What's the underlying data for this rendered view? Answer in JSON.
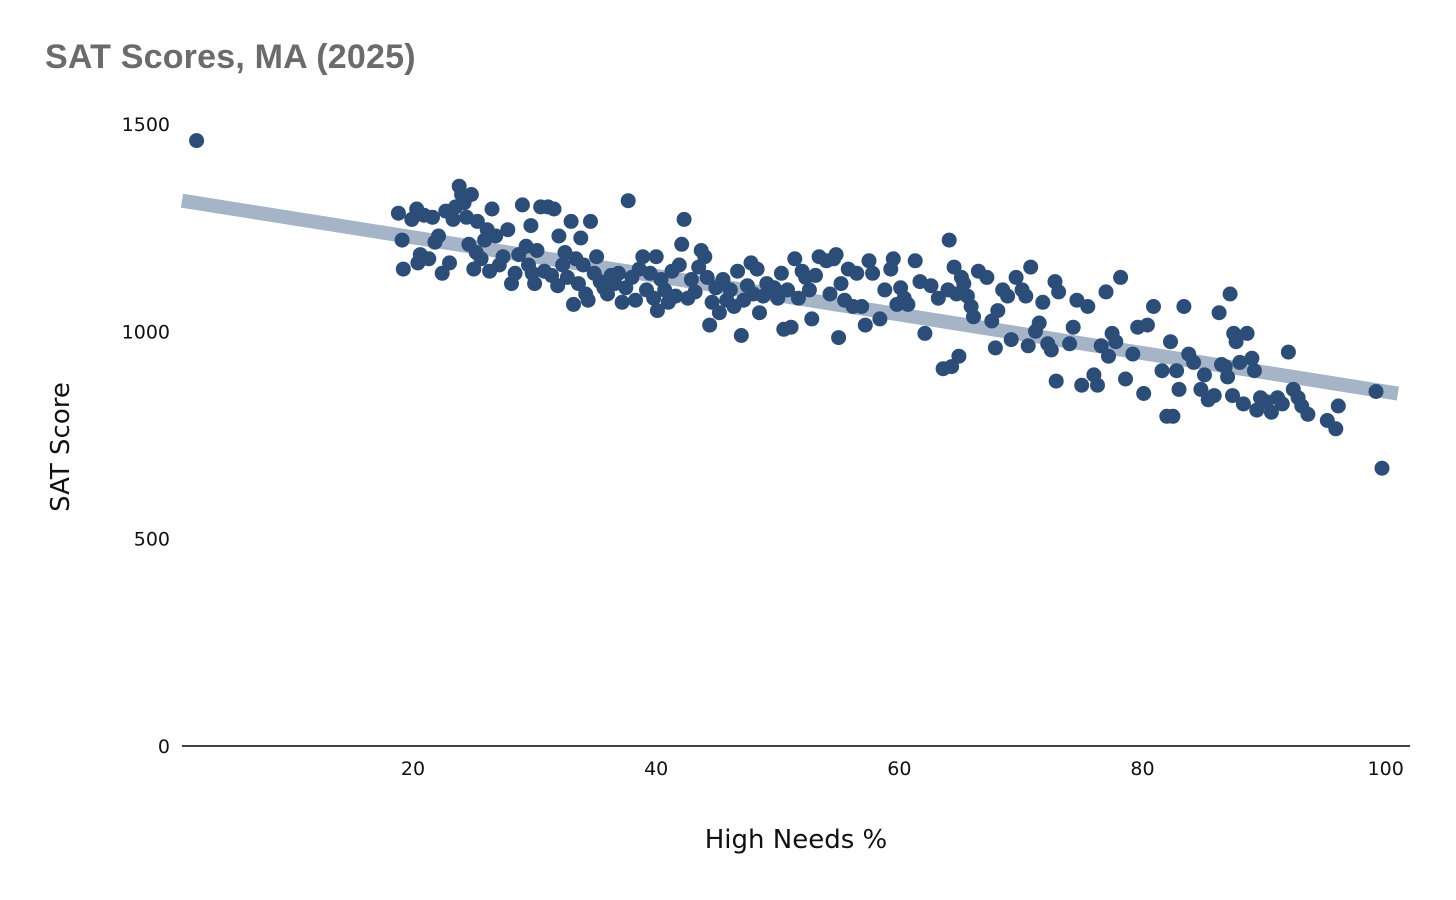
{
  "chart_data": {
    "type": "scatter",
    "title": "SAT Scores, MA (2025)",
    "xlabel": "High Needs %",
    "ylabel": "SAT Score",
    "xlim": [
      1,
      102
    ],
    "ylim": [
      0,
      1500
    ],
    "x_ticks": [
      20,
      40,
      60,
      80,
      100
    ],
    "y_ticks": [
      0,
      500,
      1000,
      1500
    ],
    "grid": false,
    "legend": "none",
    "colors": {
      "points": "#2c4d77",
      "trendline": "#a6b4c8",
      "axis": "#000000",
      "title": "#6b6b6b"
    },
    "trendline": {
      "x": [
        1,
        101
      ],
      "y": [
        1315,
        850
      ]
    },
    "points": [
      [
        2.2,
        1460
      ],
      [
        18.8,
        1285
      ],
      [
        19.1,
        1220
      ],
      [
        19.2,
        1150
      ],
      [
        19.9,
        1270
      ],
      [
        20.3,
        1295
      ],
      [
        20.4,
        1165
      ],
      [
        20.6,
        1185
      ],
      [
        20.9,
        1280
      ],
      [
        21.3,
        1175
      ],
      [
        21.6,
        1275
      ],
      [
        21.8,
        1215
      ],
      [
        22.1,
        1230
      ],
      [
        22.4,
        1140
      ],
      [
        22.7,
        1290
      ],
      [
        23.0,
        1165
      ],
      [
        23.3,
        1270
      ],
      [
        23.5,
        1300
      ],
      [
        23.8,
        1350
      ],
      [
        24.0,
        1330
      ],
      [
        24.2,
        1310
      ],
      [
        24.4,
        1275
      ],
      [
        24.6,
        1210
      ],
      [
        24.8,
        1330
      ],
      [
        25.0,
        1150
      ],
      [
        25.2,
        1190
      ],
      [
        25.3,
        1265
      ],
      [
        25.6,
        1175
      ],
      [
        25.9,
        1220
      ],
      [
        26.1,
        1245
      ],
      [
        26.3,
        1145
      ],
      [
        26.5,
        1295
      ],
      [
        26.8,
        1230
      ],
      [
        27.1,
        1160
      ],
      [
        27.4,
        1180
      ],
      [
        27.8,
        1245
      ],
      [
        28.1,
        1115
      ],
      [
        28.4,
        1140
      ],
      [
        28.7,
        1185
      ],
      [
        29.0,
        1305
      ],
      [
        29.3,
        1205
      ],
      [
        29.5,
        1160
      ],
      [
        29.7,
        1255
      ],
      [
        29.8,
        1140
      ],
      [
        30.0,
        1115
      ],
      [
        30.2,
        1195
      ],
      [
        30.5,
        1300
      ],
      [
        30.8,
        1145
      ],
      [
        31.1,
        1300
      ],
      [
        31.4,
        1135
      ],
      [
        31.6,
        1295
      ],
      [
        31.9,
        1110
      ],
      [
        32.0,
        1230
      ],
      [
        32.3,
        1160
      ],
      [
        32.5,
        1190
      ],
      [
        32.7,
        1130
      ],
      [
        33.0,
        1265
      ],
      [
        33.2,
        1065
      ],
      [
        33.4,
        1175
      ],
      [
        33.6,
        1115
      ],
      [
        33.8,
        1225
      ],
      [
        34.0,
        1160
      ],
      [
        34.2,
        1090
      ],
      [
        34.4,
        1075
      ],
      [
        34.6,
        1265
      ],
      [
        34.9,
        1140
      ],
      [
        35.1,
        1180
      ],
      [
        35.4,
        1120
      ],
      [
        35.7,
        1105
      ],
      [
        36.0,
        1090
      ],
      [
        36.3,
        1135
      ],
      [
        36.6,
        1115
      ],
      [
        36.9,
        1140
      ],
      [
        37.2,
        1070
      ],
      [
        37.5,
        1105
      ],
      [
        37.7,
        1315
      ],
      [
        38.0,
        1130
      ],
      [
        38.3,
        1075
      ],
      [
        38.6,
        1150
      ],
      [
        38.9,
        1180
      ],
      [
        39.2,
        1100
      ],
      [
        39.5,
        1140
      ],
      [
        39.8,
        1080
      ],
      [
        40.0,
        1180
      ],
      [
        40.1,
        1050
      ],
      [
        40.4,
        1125
      ],
      [
        40.7,
        1100
      ],
      [
        41.0,
        1070
      ],
      [
        41.3,
        1145
      ],
      [
        41.6,
        1085
      ],
      [
        41.9,
        1160
      ],
      [
        42.1,
        1210
      ],
      [
        42.3,
        1270
      ],
      [
        42.6,
        1080
      ],
      [
        42.9,
        1125
      ],
      [
        43.2,
        1095
      ],
      [
        43.5,
        1155
      ],
      [
        43.7,
        1195
      ],
      [
        44.0,
        1180
      ],
      [
        44.2,
        1130
      ],
      [
        44.4,
        1015
      ],
      [
        44.6,
        1070
      ],
      [
        44.9,
        1105
      ],
      [
        45.2,
        1045
      ],
      [
        45.5,
        1125
      ],
      [
        45.8,
        1075
      ],
      [
        46.1,
        1100
      ],
      [
        46.4,
        1060
      ],
      [
        46.7,
        1145
      ],
      [
        47.0,
        990
      ],
      [
        47.2,
        1075
      ],
      [
        47.5,
        1110
      ],
      [
        47.8,
        1165
      ],
      [
        48.0,
        1090
      ],
      [
        48.3,
        1150
      ],
      [
        48.5,
        1045
      ],
      [
        48.8,
        1085
      ],
      [
        49.1,
        1115
      ],
      [
        49.4,
        1100
      ],
      [
        49.7,
        1105
      ],
      [
        50.0,
        1080
      ],
      [
        50.3,
        1140
      ],
      [
        50.5,
        1005
      ],
      [
        50.8,
        1100
      ],
      [
        51.1,
        1010
      ],
      [
        51.4,
        1175
      ],
      [
        51.7,
        1080
      ],
      [
        52.0,
        1145
      ],
      [
        52.3,
        1130
      ],
      [
        52.6,
        1100
      ],
      [
        52.8,
        1030
      ],
      [
        53.1,
        1135
      ],
      [
        53.4,
        1180
      ],
      [
        54.0,
        1170
      ],
      [
        54.3,
        1090
      ],
      [
        54.6,
        1175
      ],
      [
        54.8,
        1185
      ],
      [
        55.0,
        985
      ],
      [
        55.2,
        1115
      ],
      [
        55.5,
        1075
      ],
      [
        55.8,
        1150
      ],
      [
        56.2,
        1060
      ],
      [
        56.5,
        1140
      ],
      [
        56.9,
        1060
      ],
      [
        57.2,
        1015
      ],
      [
        57.5,
        1170
      ],
      [
        57.8,
        1140
      ],
      [
        58.4,
        1030
      ],
      [
        58.8,
        1100
      ],
      [
        59.3,
        1150
      ],
      [
        59.5,
        1175
      ],
      [
        59.8,
        1065
      ],
      [
        60.1,
        1105
      ],
      [
        60.4,
        1080
      ],
      [
        60.7,
        1065
      ],
      [
        61.3,
        1170
      ],
      [
        61.7,
        1120
      ],
      [
        62.1,
        995
      ],
      [
        62.6,
        1110
      ],
      [
        63.2,
        1080
      ],
      [
        63.6,
        910
      ],
      [
        64.0,
        1100
      ],
      [
        64.1,
        1220
      ],
      [
        64.3,
        915
      ],
      [
        64.5,
        1155
      ],
      [
        64.7,
        1090
      ],
      [
        64.9,
        940
      ],
      [
        65.1,
        1130
      ],
      [
        65.3,
        1115
      ],
      [
        65.6,
        1085
      ],
      [
        65.9,
        1060
      ],
      [
        66.1,
        1035
      ],
      [
        66.5,
        1145
      ],
      [
        67.2,
        1130
      ],
      [
        67.6,
        1025
      ],
      [
        67.9,
        960
      ],
      [
        68.1,
        1050
      ],
      [
        68.5,
        1100
      ],
      [
        68.9,
        1085
      ],
      [
        69.2,
        980
      ],
      [
        69.6,
        1130
      ],
      [
        70.1,
        1100
      ],
      [
        70.4,
        1085
      ],
      [
        70.6,
        965
      ],
      [
        70.8,
        1155
      ],
      [
        71.2,
        1000
      ],
      [
        71.5,
        1020
      ],
      [
        71.8,
        1070
      ],
      [
        72.2,
        970
      ],
      [
        72.5,
        955
      ],
      [
        72.8,
        1120
      ],
      [
        73.1,
        1095
      ],
      [
        72.9,
        880
      ],
      [
        74.0,
        970
      ],
      [
        74.3,
        1010
      ],
      [
        74.6,
        1075
      ],
      [
        75.0,
        870
      ],
      [
        75.5,
        1060
      ],
      [
        76.0,
        895
      ],
      [
        76.3,
        870
      ],
      [
        76.6,
        965
      ],
      [
        77.0,
        1095
      ],
      [
        77.2,
        940
      ],
      [
        77.5,
        995
      ],
      [
        77.8,
        975
      ],
      [
        78.2,
        1130
      ],
      [
        78.6,
        885
      ],
      [
        79.2,
        945
      ],
      [
        79.6,
        1010
      ],
      [
        80.1,
        850
      ],
      [
        80.4,
        1015
      ],
      [
        80.9,
        1060
      ],
      [
        81.6,
        905
      ],
      [
        82.0,
        795
      ],
      [
        82.3,
        975
      ],
      [
        82.5,
        795
      ],
      [
        82.8,
        905
      ],
      [
        83.0,
        860
      ],
      [
        83.4,
        1060
      ],
      [
        83.8,
        945
      ],
      [
        84.2,
        925
      ],
      [
        84.8,
        860
      ],
      [
        85.1,
        895
      ],
      [
        85.4,
        835
      ],
      [
        85.9,
        845
      ],
      [
        86.3,
        1045
      ],
      [
        86.5,
        920
      ],
      [
        86.8,
        915
      ],
      [
        87.0,
        890
      ],
      [
        87.2,
        1090
      ],
      [
        87.4,
        845
      ],
      [
        87.5,
        995
      ],
      [
        87.7,
        975
      ],
      [
        88.0,
        925
      ],
      [
        88.3,
        825
      ],
      [
        88.6,
        995
      ],
      [
        89.0,
        935
      ],
      [
        89.2,
        905
      ],
      [
        89.4,
        810
      ],
      [
        89.7,
        840
      ],
      [
        90.2,
        830
      ],
      [
        90.6,
        805
      ],
      [
        91.1,
        840
      ],
      [
        91.5,
        825
      ],
      [
        92.0,
        950
      ],
      [
        92.4,
        860
      ],
      [
        92.8,
        840
      ],
      [
        93.1,
        820
      ],
      [
        93.6,
        800
      ],
      [
        95.2,
        785
      ],
      [
        95.9,
        765
      ],
      [
        96.1,
        820
      ],
      [
        99.2,
        855
      ],
      [
        99.7,
        670
      ]
    ]
  }
}
